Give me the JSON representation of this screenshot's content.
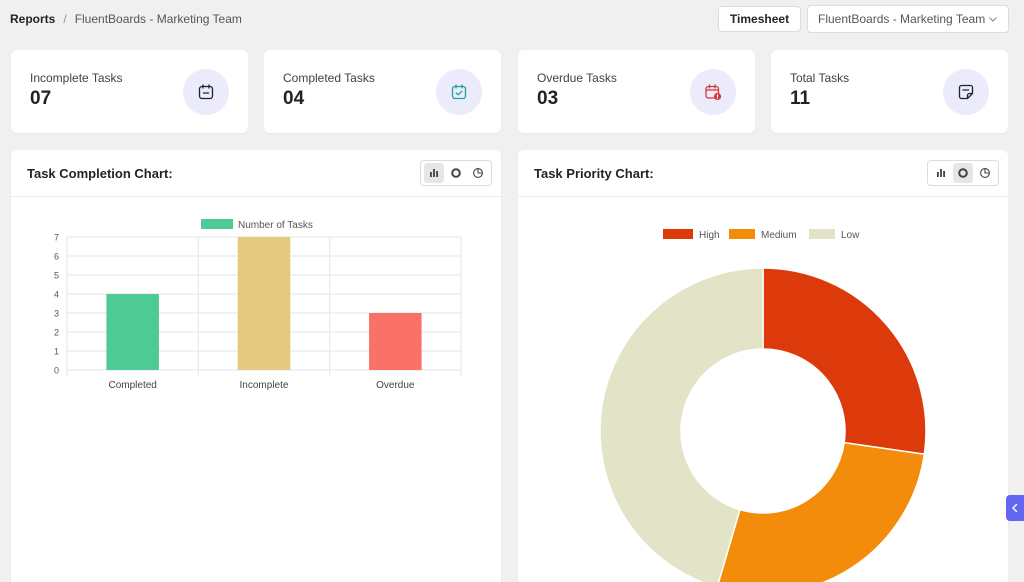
{
  "breadcrumb": {
    "root": "Reports",
    "separator": "/",
    "current": "FluentBoards - Marketing Team"
  },
  "header": {
    "timesheet_label": "Timesheet",
    "board_select_value": "FluentBoards - Marketing Team"
  },
  "stats": [
    {
      "label": "Incomplete Tasks",
      "value": "07",
      "icon": "calendar-minus-icon",
      "icon_color": "#1d2327"
    },
    {
      "label": "Completed Tasks",
      "value": "04",
      "icon": "calendar-check-icon",
      "icon_color": "#1aa3a3"
    },
    {
      "label": "Overdue Tasks",
      "value": "03",
      "icon": "calendar-alert-icon",
      "icon_color": "#d63638"
    },
    {
      "label": "Total Tasks",
      "value": "11",
      "icon": "sticky-note-icon",
      "icon_color": "#1d2327"
    }
  ],
  "completion_panel": {
    "title": "Task Completion Chart:",
    "active_view": "bar"
  },
  "priority_panel": {
    "title": "Task Priority Chart:",
    "active_view": "doughnut"
  },
  "chart_data": [
    {
      "type": "bar",
      "categories": [
        "Completed",
        "Incomplete",
        "Overdue"
      ],
      "series": [
        {
          "name": "Number of Tasks",
          "values": [
            4,
            7,
            3
          ]
        }
      ],
      "colors": [
        "#4ecb94",
        "#e5c97f",
        "#f97168"
      ],
      "legend_color": "#4ecb94",
      "ylim": [
        0,
        7
      ],
      "yticks": [
        0,
        1,
        2,
        3,
        4,
        5,
        6,
        7
      ],
      "grid": true,
      "legend": "top-center"
    },
    {
      "type": "pie",
      "variant": "doughnut",
      "labels": [
        "High",
        "Medium",
        "Low"
      ],
      "values": [
        3,
        3,
        5
      ],
      "colors": [
        "#dc3a0b",
        "#f28c0a",
        "#e2e3c7"
      ],
      "legend": "top-center"
    }
  ]
}
